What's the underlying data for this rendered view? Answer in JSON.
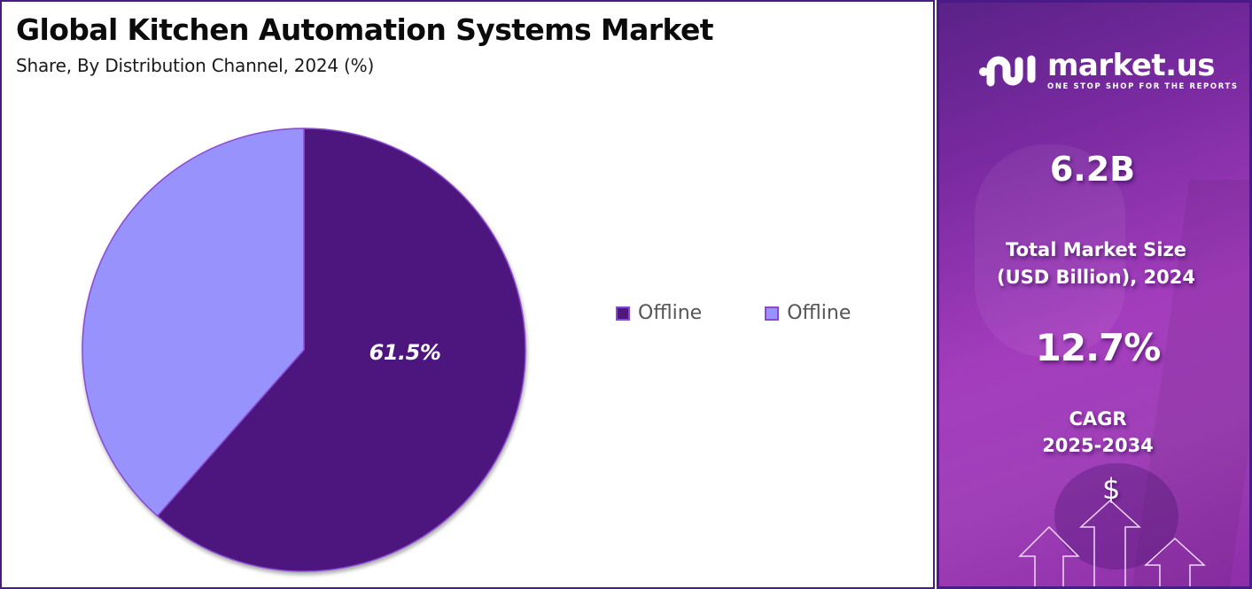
{
  "header": {
    "title": "Global Kitchen Automation Systems Market",
    "subtitle": "Share, By Distribution Channel, 2024 (%)"
  },
  "legend": [
    {
      "label": "Offline",
      "color": "#4e177e"
    },
    {
      "label": "Offline",
      "color": "#9892fd"
    }
  ],
  "pie_label": "61.5%",
  "brand": {
    "name": "market.us",
    "tagline": "ONE STOP SHOP FOR THE REPORTS"
  },
  "stats": {
    "market_size_value": "6.2B",
    "market_size_label_line1": "Total Market Size",
    "market_size_label_line2": "(USD Billion), 2024",
    "cagr_value": "12.7%",
    "cagr_label_line1": "CAGR",
    "cagr_label_line2": "2025-2034"
  },
  "icons": {
    "dollar": "$"
  },
  "colors": {
    "border": "#4a1a86",
    "slice_dark": "#4e177e",
    "slice_light": "#9892fd",
    "slice_stroke": "#8a4ad0"
  },
  "chart_data": {
    "type": "pie",
    "title": "Global Kitchen Automation Systems Market",
    "subtitle": "Share, By Distribution Channel, 2024 (%)",
    "categories": [
      "Offline",
      "Offline"
    ],
    "values": [
      61.5,
      38.5
    ],
    "colors": [
      "#4e177e",
      "#9892fd"
    ],
    "data_labels": [
      "61.5%",
      ""
    ],
    "start_angle": "12 o'clock, clockwise",
    "legend_position": "right"
  }
}
